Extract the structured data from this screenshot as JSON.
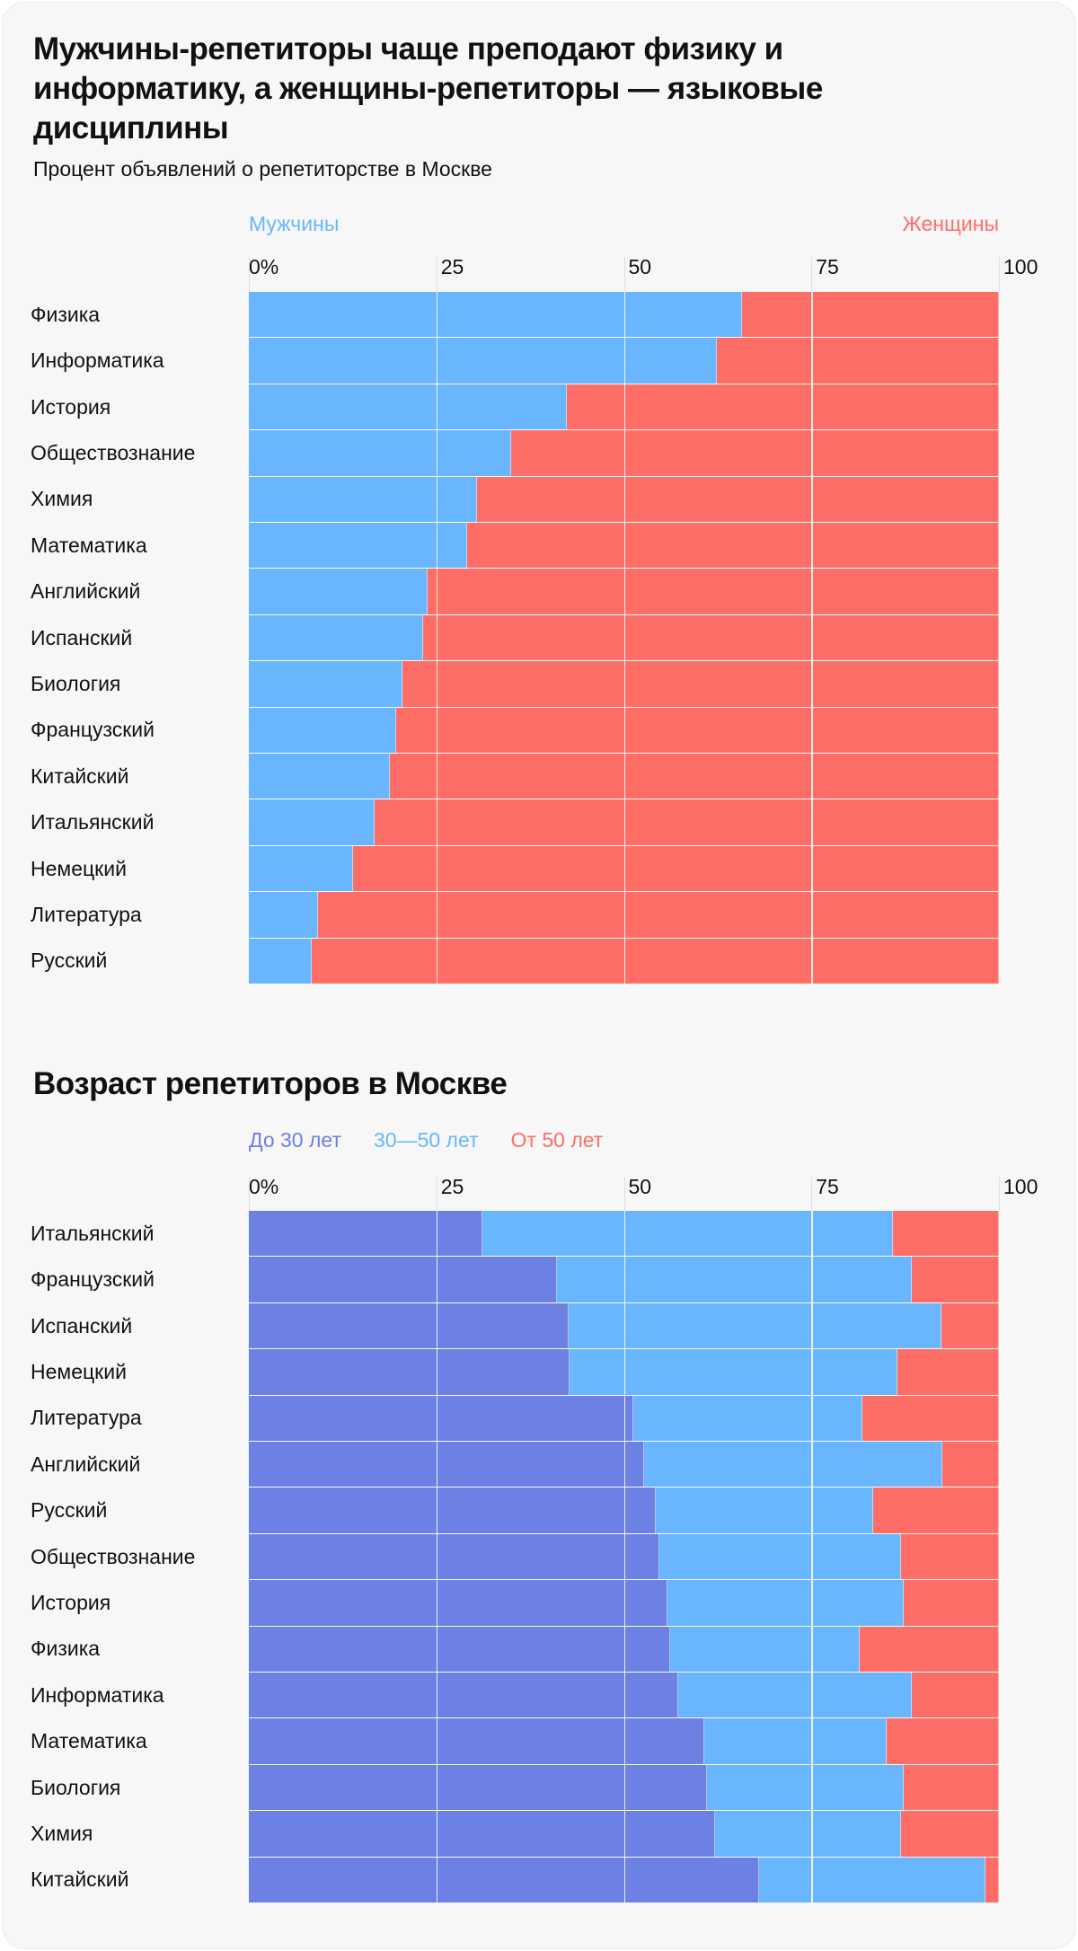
{
  "charts_header": {
    "title": "Мужчины-репетиторы чаще преподают физику и информатику, а женщины-репетиторы — языковые дисциплины",
    "subtitle": "Процент объявлений о репетиторстве в Москве",
    "title2": "Возраст репетиторов в Москве"
  },
  "chart_data": [
    {
      "type": "bar",
      "stacked": true,
      "orientation": "horizontal",
      "title": "Мужчины-репетиторы чаще преподают физику и информатику, а женщины-репетиторы — языковые дисциплины",
      "subtitle": "Процент объявлений о репетиторстве в Москве",
      "xlim": [
        0,
        100
      ],
      "xticks": [
        "0%",
        "25",
        "50",
        "75",
        "100"
      ],
      "grid": true,
      "legend_placement": "top",
      "categories": [
        "Физика",
        "Информатика",
        "История",
        "Обществознание",
        "Химия",
        "Математика",
        "Английский",
        "Испанский",
        "Биология",
        "Французский",
        "Китайский",
        "Итальянский",
        "Немецкий",
        "Литература",
        "Русский"
      ],
      "series": [
        {
          "name": "Мужчины",
          "color": "#69b6ff",
          "values": [
            65.8,
            62.4,
            42.4,
            35.0,
            30.4,
            29.1,
            23.8,
            23.2,
            20.5,
            19.6,
            18.8,
            16.8,
            13.9,
            9.2,
            8.4
          ]
        },
        {
          "name": "Женщины",
          "color": "#ff6e66",
          "values": [
            34.2,
            37.6,
            57.6,
            65.0,
            69.6,
            70.9,
            76.2,
            76.8,
            79.5,
            80.4,
            81.2,
            83.2,
            86.1,
            90.8,
            91.6
          ]
        }
      ]
    },
    {
      "type": "bar",
      "stacked": true,
      "orientation": "horizontal",
      "title": "Возраст репетиторов в Москве",
      "xlim": [
        0,
        100
      ],
      "xticks": [
        "0%",
        "25",
        "50",
        "75",
        "100"
      ],
      "grid": true,
      "legend_placement": "top",
      "categories": [
        "Итальянский",
        "Французский",
        "Испанский",
        "Немецкий",
        "Литература",
        "Английский",
        "Русский",
        "Обществознание",
        "История",
        "Физика",
        "Информатика",
        "Математика",
        "Биология",
        "Химия",
        "Китайский"
      ],
      "series": [
        {
          "name": "До 30 лет",
          "color": "#6d80e4",
          "values": [
            31.1,
            41.1,
            42.6,
            42.8,
            51.2,
            52.7,
            54.3,
            54.7,
            55.8,
            56.2,
            57.2,
            60.7,
            61.1,
            62.1,
            68.0
          ]
        },
        {
          "name": "30—50 лет",
          "color": "#69b6ff",
          "values": [
            54.8,
            47.3,
            49.7,
            43.7,
            30.6,
            39.8,
            28.9,
            32.2,
            31.5,
            25.2,
            31.2,
            24.3,
            26.2,
            24.8,
            30.2
          ]
        },
        {
          "name": "От 50 лет",
          "color": "#ff6e66",
          "values": [
            14.1,
            11.6,
            7.7,
            13.5,
            18.2,
            7.5,
            16.8,
            13.1,
            12.7,
            18.6,
            11.6,
            15.0,
            12.7,
            13.1,
            1.8
          ]
        }
      ]
    }
  ]
}
